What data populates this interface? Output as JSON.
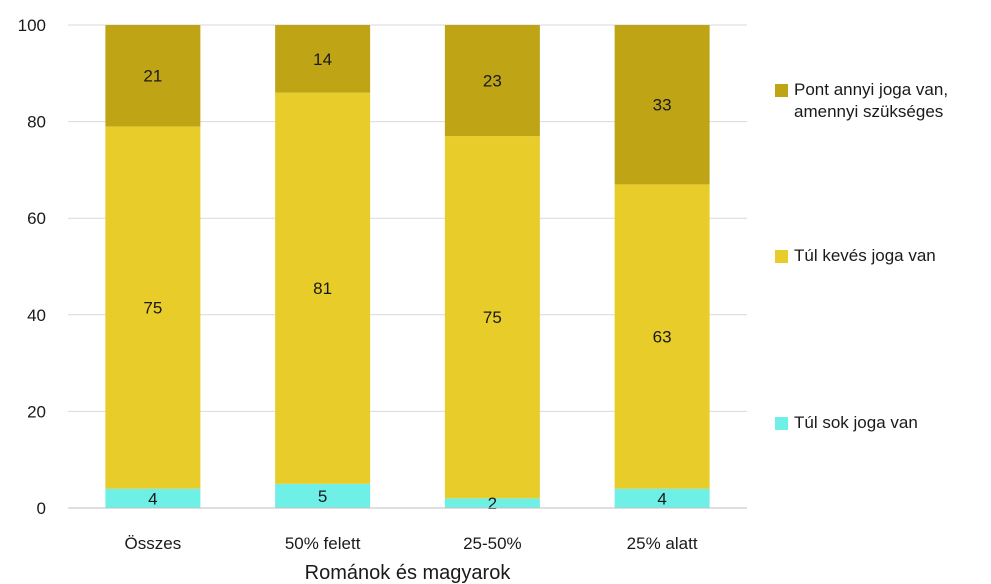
{
  "chart_data": {
    "type": "bar",
    "stacked": true,
    "categories": [
      "Összes",
      "50% felett",
      "25-50%",
      "25% alatt"
    ],
    "series": [
      {
        "name": "Túl sok joga van",
        "color": "#6ff0e6",
        "values": [
          4,
          5,
          2,
          4
        ]
      },
      {
        "name": "Túl kevés joga van",
        "color": "#e8cc2a",
        "values": [
          75,
          81,
          75,
          63
        ]
      },
      {
        "name": "Pont annyi joga van, amennyi szükséges",
        "name_lines": [
          "Pont annyi joga van,",
          "amennyi szükséges"
        ],
        "color": "#bfa516",
        "values": [
          21,
          14,
          23,
          33
        ]
      }
    ],
    "title": "",
    "xlabel": "Románok és magyarok",
    "ylabel": "",
    "ylim": [
      0,
      100
    ],
    "yticks": [
      0,
      20,
      40,
      60,
      80,
      100
    ],
    "grid": true,
    "legend_position": "right"
  }
}
